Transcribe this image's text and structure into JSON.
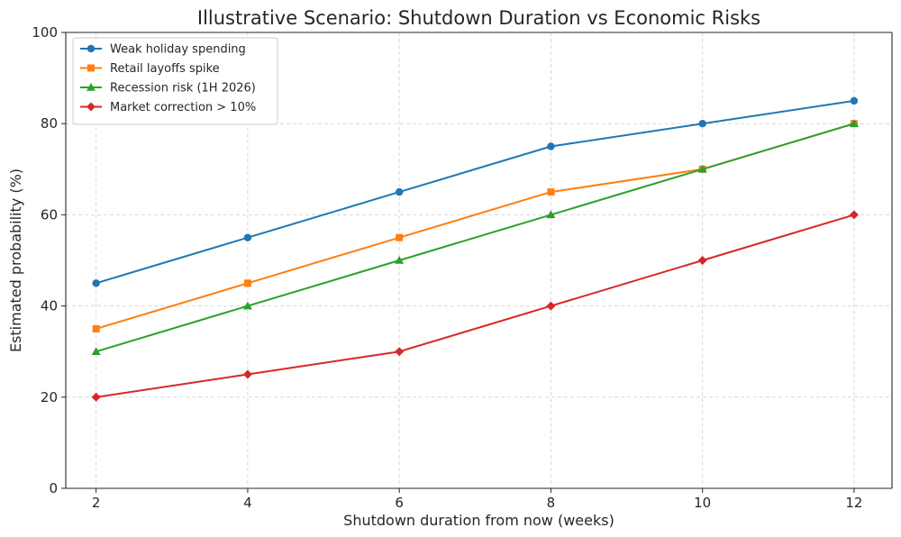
{
  "chart_data": {
    "type": "line",
    "title": "Illustrative Scenario: Shutdown Duration vs Economic Risks",
    "xlabel": "Shutdown duration from now (weeks)",
    "ylabel": "Estimated probability (%)",
    "x": [
      2,
      4,
      6,
      8,
      10,
      12
    ],
    "xticks": [
      2,
      4,
      6,
      8,
      10,
      12
    ],
    "yticks": [
      0,
      20,
      40,
      60,
      80,
      100
    ],
    "xlim": [
      1.6,
      12.5
    ],
    "ylim": [
      0,
      100
    ],
    "grid": true,
    "legend_position": "top-left",
    "series": [
      {
        "name": "Weak holiday spending",
        "values": [
          45,
          55,
          65,
          75,
          80,
          85
        ],
        "color": "#1f77b4",
        "marker": "circle"
      },
      {
        "name": "Retail layoffs spike",
        "values": [
          35,
          45,
          55,
          65,
          70,
          80
        ],
        "color": "#ff7f0e",
        "marker": "square"
      },
      {
        "name": "Recession risk (1H 2026)",
        "values": [
          30,
          40,
          50,
          60,
          70,
          80
        ],
        "color": "#2ca02c",
        "marker": "triangle"
      },
      {
        "name": "Market correction > 10%",
        "values": [
          20,
          25,
          30,
          40,
          50,
          60
        ],
        "color": "#d62728",
        "marker": "diamond"
      }
    ]
  }
}
